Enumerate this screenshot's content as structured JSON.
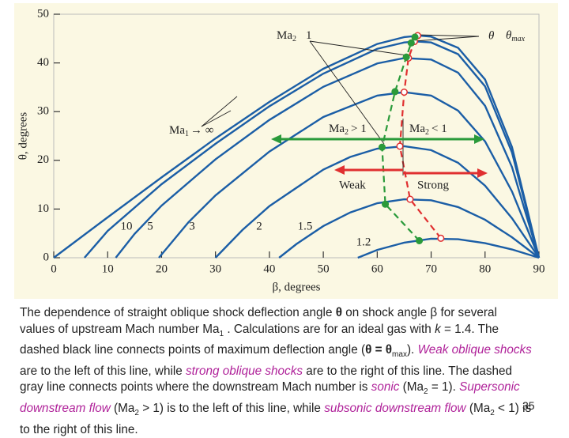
{
  "chart_data": {
    "type": "line",
    "xlabel": "β, degrees",
    "ylabel": "θ, degrees",
    "xlim": [
      0,
      90
    ],
    "ylim": [
      0,
      50
    ],
    "xticks": [
      0,
      10,
      20,
      30,
      40,
      50,
      60,
      70,
      80,
      90
    ],
    "yticks": [
      0,
      10,
      20,
      30,
      40,
      50
    ],
    "series": [
      {
        "color": "#1b5ea6",
        "x": [
          0,
          10,
          20,
          30,
          40,
          50,
          60,
          65,
          67.8,
          70,
          75,
          80,
          85,
          90
        ],
        "values": [
          0,
          8.3,
          16.5,
          24.5,
          32.0,
          38.8,
          43.9,
          45.3,
          45.6,
          45.4,
          43.1,
          36.6,
          22.7,
          0
        ]
      },
      {
        "name": "10",
        "color": "#1b5ea6",
        "x": [
          5.7,
          10,
          20,
          30,
          40,
          50,
          60,
          65,
          67.5,
          70,
          75,
          80,
          85,
          90
        ],
        "values": [
          0,
          5.5,
          15.1,
          23.4,
          31.1,
          37.8,
          42.9,
          44.2,
          44.4,
          44.2,
          41.8,
          35.2,
          21.6,
          0
        ]
      },
      {
        "name": "5",
        "color": "#1b5ea6",
        "x": [
          11.5,
          15,
          20,
          30,
          40,
          50,
          60,
          65,
          70,
          75,
          80,
          85,
          90
        ],
        "values": [
          0,
          4.9,
          10.7,
          20.2,
          28.3,
          35.1,
          39.9,
          41.0,
          40.7,
          38.0,
          31.2,
          18.6,
          0
        ]
      },
      {
        "name": "3",
        "color": "#1b5ea6",
        "x": [
          19.5,
          25,
          30,
          40,
          50,
          60,
          65,
          70,
          75,
          80,
          85,
          90
        ],
        "values": [
          0,
          7.3,
          12.8,
          21.8,
          28.9,
          33.3,
          34.0,
          33.3,
          30.2,
          23.9,
          13.6,
          0
        ]
      },
      {
        "name": "2",
        "color": "#1b5ea6",
        "x": [
          30,
          35,
          40,
          50,
          55,
          60,
          65,
          70,
          75,
          80,
          85,
          90
        ],
        "values": [
          0,
          5.7,
          10.6,
          18.1,
          20.7,
          22.4,
          22.9,
          22.1,
          19.5,
          14.8,
          8.1,
          0
        ]
      },
      {
        "name": "1.5",
        "color": "#1b5ea6",
        "x": [
          41.8,
          45,
          50,
          55,
          60,
          65,
          70,
          75,
          80,
          85,
          90
        ],
        "values": [
          0,
          2.8,
          6.5,
          9.3,
          11.2,
          12.0,
          11.8,
          10.4,
          7.8,
          4.2,
          0
        ]
      },
      {
        "name": "1.2",
        "color": "#1b5ea6",
        "x": [
          56.4,
          60,
          65,
          70,
          75,
          80,
          85,
          90
        ],
        "values": [
          0,
          1.6,
          3.1,
          3.9,
          3.8,
          3.0,
          1.7,
          0
        ]
      },
      {
        "color": "#e03030",
        "dashed": true,
        "marker": "open",
        "x": [
          71.8,
          66.1,
          64.2,
          65.0,
          65.8,
          66.9,
          67.5
        ],
        "values": [
          4.0,
          12.0,
          22.9,
          34.0,
          41.0,
          44.4,
          45.6
        ]
      },
      {
        "color": "#2a9a3a",
        "dashed": true,
        "marker": "filled",
        "x": [
          67.8,
          61.5,
          60.9,
          63.3,
          65.4,
          66.3,
          67.0
        ],
        "values": [
          3.5,
          11.0,
          22.7,
          34.1,
          41.2,
          44.1,
          45.3
        ]
      }
    ],
    "annotations": {
      "sonic_label": {
        "text": "Ma",
        "sub": "2",
        "rel": "1"
      },
      "theta_label": "θ",
      "theta_max_label": {
        "text": "θ",
        "sub": "max"
      },
      "supersonic_label": {
        "text": "Ma",
        "sub": "2",
        "rel": "> 1"
      },
      "subsonic_label": {
        "text": "Ma",
        "sub": "2",
        "rel": "< 1"
      },
      "weak": "Weak",
      "strong": "Strong",
      "mach_inf": {
        "text": "Ma",
        "sub": "1",
        "rel": "→ ∞"
      }
    }
  },
  "caption": [
    "The dependence of straight oblique shock deflection angle ",
    "θ",
    " on shock angle ",
    "β",
    " for several values of upstream Mach number Ma",
    "1",
    " . Calculations are for an ideal gas with ",
    "k",
    " = 1.4. The dashed black line connects points of maximum deflection angle (",
    "θ = θ",
    "max",
    "). ",
    "Weak oblique shocks",
    " are to the left of this line, while ",
    "strong oblique shocks",
    " are to the right of this line. The dashed gray line connects points where the downstream Mach number is ",
    "sonic",
    " (Ma",
    "2",
    " = 1). ",
    "Supersonic downstream flow",
    " (Ma",
    "2",
    " > 1) is to the left of this line, while ",
    "subsonic downstream flow",
    " (Ma",
    "2",
    " < 1) is to the right of this line."
  ],
  "page_number": "35"
}
